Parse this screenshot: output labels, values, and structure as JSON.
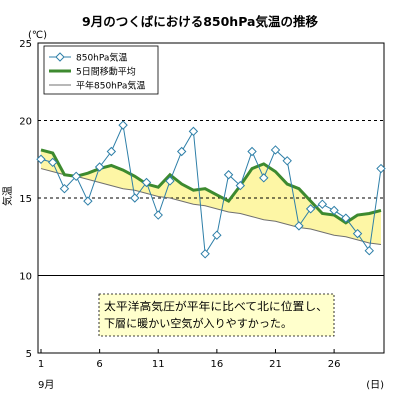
{
  "chart_data": {
    "type": "line",
    "title": "9月のつくばにおける850hPa気温の推移",
    "y_unit": "(℃)",
    "ylabel": "気温",
    "x_unit": "(日)",
    "month_label": "9月",
    "x": [
      1,
      2,
      3,
      4,
      5,
      6,
      7,
      8,
      9,
      10,
      11,
      12,
      13,
      14,
      15,
      16,
      17,
      18,
      19,
      20,
      21,
      22,
      23,
      24,
      25,
      26,
      27,
      28,
      29,
      30
    ],
    "xlim": [
      1,
      30
    ],
    "ylim": [
      5,
      25
    ],
    "x_ticks": [
      1,
      6,
      11,
      16,
      21,
      26
    ],
    "y_ticks": [
      5,
      10,
      15,
      20,
      25
    ],
    "grid": "dashed horizontal at 15, 20",
    "legend_position": "top-left",
    "series": [
      {
        "name": "850hPa気温",
        "color": "#2e7fa8",
        "marker": "diamond-hollow",
        "values": [
          17.5,
          17.3,
          15.6,
          16.4,
          14.8,
          17.0,
          18.0,
          19.7,
          15.0,
          16.0,
          13.9,
          16.1,
          18.0,
          19.3,
          11.4,
          12.6,
          16.5,
          15.8,
          18.0,
          16.3,
          18.1,
          17.4,
          13.2,
          14.3,
          14.6,
          14.2,
          13.7,
          12.7,
          11.6,
          16.9
        ]
      },
      {
        "name": "5日間移動平均",
        "color": "#3d8a2f",
        "values": [
          18.1,
          17.9,
          16.5,
          16.4,
          16.6,
          16.9,
          17.1,
          16.8,
          16.4,
          15.9,
          15.7,
          16.5,
          15.9,
          15.5,
          15.6,
          15.2,
          14.8,
          15.8,
          16.9,
          17.2,
          16.7,
          15.9,
          15.6,
          14.8,
          14.0,
          13.9,
          13.4,
          13.9,
          14.0,
          14.2
        ]
      },
      {
        "name": "平年850hPa気温",
        "color": "#707070",
        "values": [
          16.9,
          16.7,
          16.5,
          16.4,
          16.2,
          16.0,
          15.8,
          15.6,
          15.5,
          15.3,
          15.1,
          15.0,
          14.8,
          14.6,
          14.5,
          14.3,
          14.1,
          14.0,
          13.8,
          13.6,
          13.5,
          13.3,
          13.1,
          13.0,
          12.8,
          12.6,
          12.5,
          12.3,
          12.1,
          12.0
        ]
      }
    ],
    "fill_between": {
      "upper": "5日間移動平均",
      "lower": "平年850hPa気温",
      "color": "#fdf6a5"
    },
    "annotation": {
      "lines": [
        "太平洋高気圧が平年に比べて北に位置し、",
        "下層に暖かい空気が入りやすかった。"
      ],
      "background": "#ffffcc"
    }
  }
}
